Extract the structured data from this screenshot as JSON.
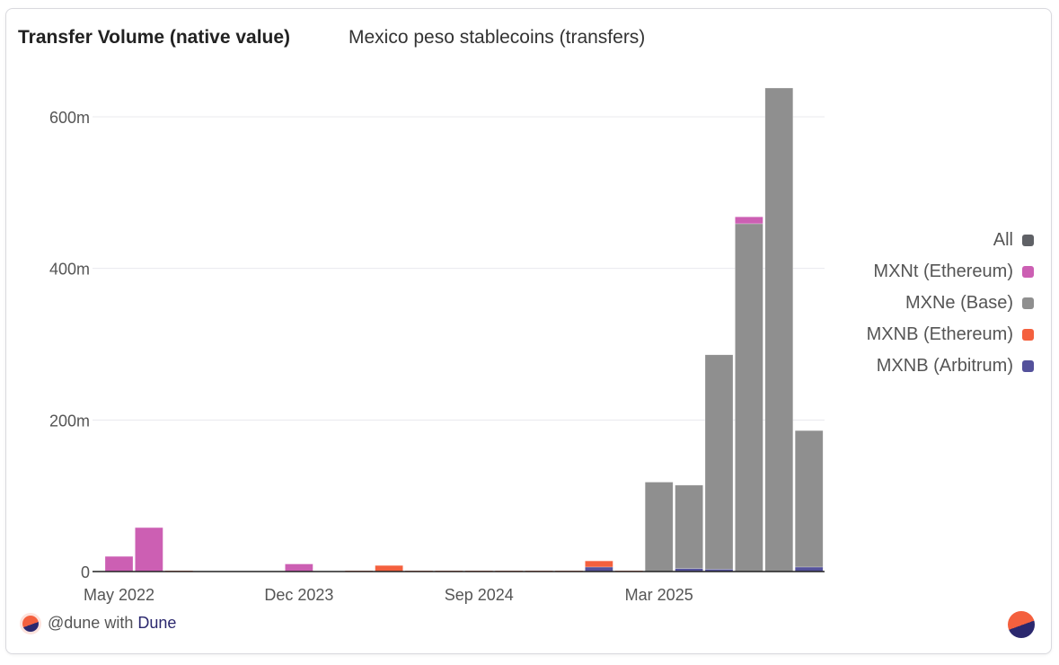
{
  "header": {
    "title": "Transfer Volume (native value)",
    "subtitle": "Mexico peso stablecoins (transfers)"
  },
  "footer": {
    "handle": "@dune with",
    "brand": "Dune"
  },
  "chart_data": {
    "type": "bar",
    "stacked": true,
    "title": "Transfer Volume (native value)",
    "ylim": [
      0,
      650
    ],
    "yticks": [
      {
        "v": 0,
        "label": "0"
      },
      {
        "v": 200,
        "label": "200m"
      },
      {
        "v": 400,
        "label": "400m"
      },
      {
        "v": 600,
        "label": "600m"
      }
    ],
    "xtick_labels": [
      {
        "index": 0,
        "label": "May 2022"
      },
      {
        "index": 6,
        "label": "Dec 2023"
      },
      {
        "index": 12,
        "label": "Sep 2024"
      },
      {
        "index": 18,
        "label": "Mar 2025"
      }
    ],
    "legend_position": "right",
    "legend": [
      {
        "name": "All",
        "color": "#5f6166"
      },
      {
        "name": "MXNt (Ethereum)",
        "color": "#cc5fb3"
      },
      {
        "name": "MXNe (Base)",
        "color": "#8f8f8f"
      },
      {
        "name": "MXNB (Ethereum)",
        "color": "#f4603e"
      },
      {
        "name": "MXNB (Arbitrum)",
        "color": "#54519b"
      }
    ],
    "series": [
      {
        "name": "MXNB (Arbitrum)",
        "color": "#54519b",
        "values": [
          0,
          0,
          0,
          0,
          0,
          0,
          0,
          0,
          0,
          0,
          0,
          0,
          0,
          0,
          0,
          0,
          6,
          0,
          0,
          4,
          3,
          0,
          0,
          6
        ]
      },
      {
        "name": "MXNB (Ethereum)",
        "color": "#f4603e",
        "values": [
          0,
          0,
          0.5,
          0,
          0,
          0,
          0,
          0,
          0.5,
          8,
          1,
          1,
          0.3,
          1,
          0.3,
          1,
          8,
          1,
          0,
          0,
          0,
          0,
          0,
          0
        ]
      },
      {
        "name": "MXNe (Base)",
        "color": "#8f8f8f",
        "values": [
          0,
          0,
          0,
          0,
          0,
          0,
          0,
          0,
          0,
          0,
          0,
          0,
          0,
          0,
          0,
          0,
          0,
          0,
          118,
          110,
          283,
          459,
          638,
          180
        ]
      },
      {
        "name": "MXNt (Ethereum)",
        "color": "#cc5fb3",
        "values": [
          20,
          58,
          0,
          0,
          0,
          0,
          10,
          0,
          0,
          0,
          0,
          0,
          0,
          0,
          0,
          0,
          0,
          0,
          0,
          0,
          0,
          9,
          0,
          0
        ]
      }
    ]
  }
}
